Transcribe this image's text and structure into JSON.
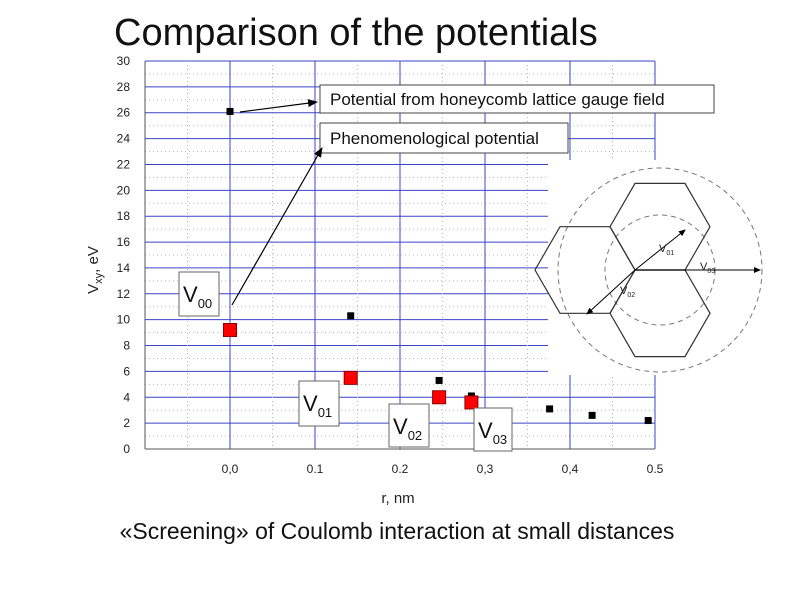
{
  "slide": {
    "title": "Comparison of the potentials",
    "caption": "«Screening» of Coulomb interaction at small distances"
  },
  "chart_data": {
    "type": "scatter",
    "xlabel": "r, nm",
    "ylabel_main": "V",
    "ylabel_sub": "xy",
    "ylabel_unit": ", eV",
    "xlim": [
      -0.1,
      0.5
    ],
    "ylim": [
      0,
      30
    ],
    "x_ticks": [
      {
        "value": 0.0,
        "label": "0,0"
      },
      {
        "value": 0.1,
        "label": "0.1"
      },
      {
        "value": 0.2,
        "label": "0.2"
      },
      {
        "value": 0.3,
        "label": "0,3"
      },
      {
        "value": 0.4,
        "label": "0,4"
      },
      {
        "value": 0.5,
        "label": "0.5"
      }
    ],
    "y_ticks": [
      0,
      2,
      4,
      6,
      8,
      10,
      12,
      14,
      16,
      18,
      20,
      22,
      24,
      26,
      28,
      30
    ],
    "grid": true,
    "series": [
      {
        "name": "Potential from honeycomb lattice gauge field",
        "marker": "small-square",
        "color": "#000000",
        "points": [
          {
            "x": 0.0,
            "y": 26.1
          },
          {
            "x": 0.142,
            "y": 10.3
          },
          {
            "x": 0.246,
            "y": 5.3
          },
          {
            "x": 0.284,
            "y": 4.1
          },
          {
            "x": 0.376,
            "y": 3.1
          },
          {
            "x": 0.426,
            "y": 2.6
          },
          {
            "x": 0.492,
            "y": 2.2
          }
        ]
      },
      {
        "name": "Phenomenological potential",
        "marker": "large-square",
        "color": "#ff0000",
        "points": [
          {
            "x": 0.0,
            "y": 9.2
          },
          {
            "x": 0.142,
            "y": 5.5
          },
          {
            "x": 0.246,
            "y": 4.0
          },
          {
            "x": 0.284,
            "y": 3.6
          }
        ]
      }
    ],
    "point_labels": [
      {
        "main": "V",
        "sub": "00"
      },
      {
        "main": "V",
        "sub": "01"
      },
      {
        "main": "V",
        "sub": "02"
      },
      {
        "main": "V",
        "sub": "03"
      }
    ],
    "inset": {
      "labels": [
        {
          "main": "V",
          "sub": "01"
        },
        {
          "main": "V",
          "sub": "02"
        },
        {
          "main": "V",
          "sub": "03"
        }
      ]
    }
  }
}
